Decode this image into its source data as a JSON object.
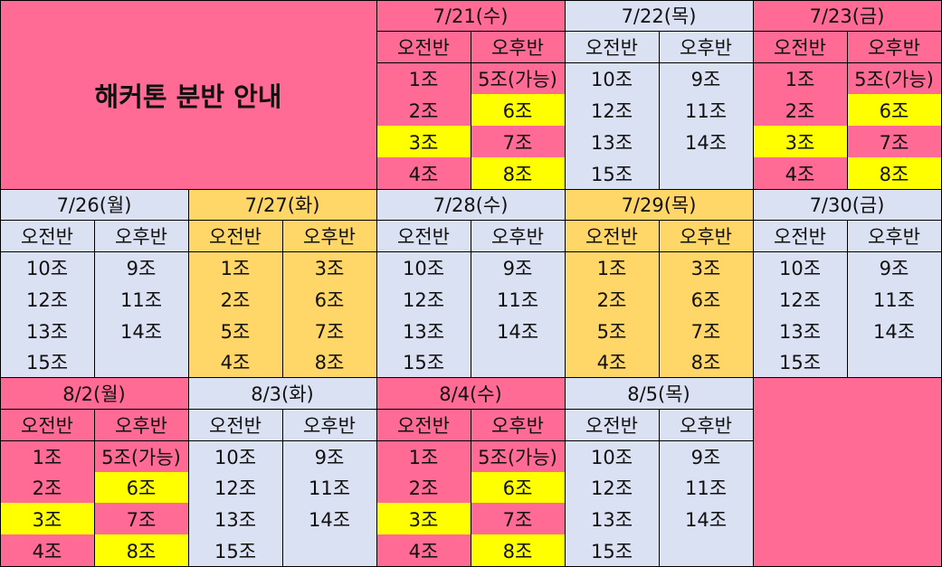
{
  "title": "해커톤 분반 안내",
  "labels": {
    "am": "오전반",
    "pm": "오후반"
  },
  "colors": {
    "pink": "#ff6b94",
    "blue": "#dae1f2",
    "orange": "#ffd667",
    "yellow": "#ffff00"
  },
  "days": [
    {
      "date": "7/21(수)",
      "theme": "pink",
      "am": [
        {
          "t": "1조",
          "c": "pink"
        },
        {
          "t": "2조",
          "c": "pink"
        },
        {
          "t": "3조",
          "c": "yellow"
        },
        {
          "t": "4조",
          "c": "pink"
        }
      ],
      "pm": [
        {
          "t": "5조(가능)",
          "c": "pink"
        },
        {
          "t": "6조",
          "c": "yellow"
        },
        {
          "t": "7조",
          "c": "pink"
        },
        {
          "t": "8조",
          "c": "yellow"
        }
      ]
    },
    {
      "date": "7/22(목)",
      "theme": "blue",
      "am": [
        {
          "t": "10조",
          "c": "blue"
        },
        {
          "t": "12조",
          "c": "blue"
        },
        {
          "t": "13조",
          "c": "blue"
        },
        {
          "t": "15조",
          "c": "blue"
        }
      ],
      "pm": [
        {
          "t": "9조",
          "c": "blue"
        },
        {
          "t": "11조",
          "c": "blue"
        },
        {
          "t": "14조",
          "c": "blue"
        },
        {
          "t": "",
          "c": "blue"
        }
      ]
    },
    {
      "date": "7/23(금)",
      "theme": "pink",
      "am": [
        {
          "t": "1조",
          "c": "pink"
        },
        {
          "t": "2조",
          "c": "pink"
        },
        {
          "t": "3조",
          "c": "yellow"
        },
        {
          "t": "4조",
          "c": "pink"
        }
      ],
      "pm": [
        {
          "t": "5조(가능)",
          "c": "pink"
        },
        {
          "t": "6조",
          "c": "yellow"
        },
        {
          "t": "7조",
          "c": "pink"
        },
        {
          "t": "8조",
          "c": "yellow"
        }
      ]
    },
    {
      "date": "7/26(월)",
      "theme": "blue",
      "am": [
        {
          "t": "10조",
          "c": "blue"
        },
        {
          "t": "12조",
          "c": "blue"
        },
        {
          "t": "13조",
          "c": "blue"
        },
        {
          "t": "15조",
          "c": "blue"
        }
      ],
      "pm": [
        {
          "t": "9조",
          "c": "blue"
        },
        {
          "t": "11조",
          "c": "blue"
        },
        {
          "t": "14조",
          "c": "blue"
        },
        {
          "t": "",
          "c": "blue"
        }
      ]
    },
    {
      "date": "7/27(화)",
      "theme": "orange",
      "am": [
        {
          "t": "1조",
          "c": "orange"
        },
        {
          "t": "2조",
          "c": "orange"
        },
        {
          "t": "5조",
          "c": "orange"
        },
        {
          "t": "4조",
          "c": "orange"
        }
      ],
      "pm": [
        {
          "t": "3조",
          "c": "orange"
        },
        {
          "t": "6조",
          "c": "orange"
        },
        {
          "t": "7조",
          "c": "orange"
        },
        {
          "t": "8조",
          "c": "orange"
        }
      ]
    },
    {
      "date": "7/28(수)",
      "theme": "blue",
      "am": [
        {
          "t": "10조",
          "c": "blue"
        },
        {
          "t": "12조",
          "c": "blue"
        },
        {
          "t": "13조",
          "c": "blue"
        },
        {
          "t": "15조",
          "c": "blue"
        }
      ],
      "pm": [
        {
          "t": "9조",
          "c": "blue"
        },
        {
          "t": "11조",
          "c": "blue"
        },
        {
          "t": "14조",
          "c": "blue"
        },
        {
          "t": "",
          "c": "blue"
        }
      ]
    },
    {
      "date": "7/29(목)",
      "theme": "orange",
      "am": [
        {
          "t": "1조",
          "c": "orange"
        },
        {
          "t": "2조",
          "c": "orange"
        },
        {
          "t": "5조",
          "c": "orange"
        },
        {
          "t": "4조",
          "c": "orange"
        }
      ],
      "pm": [
        {
          "t": "3조",
          "c": "orange"
        },
        {
          "t": "6조",
          "c": "orange"
        },
        {
          "t": "7조",
          "c": "orange"
        },
        {
          "t": "8조",
          "c": "orange"
        }
      ]
    },
    {
      "date": "7/30(금)",
      "theme": "blue",
      "am": [
        {
          "t": "10조",
          "c": "blue"
        },
        {
          "t": "12조",
          "c": "blue"
        },
        {
          "t": "13조",
          "c": "blue"
        },
        {
          "t": "15조",
          "c": "blue"
        }
      ],
      "pm": [
        {
          "t": "9조",
          "c": "blue"
        },
        {
          "t": "11조",
          "c": "blue"
        },
        {
          "t": "14조",
          "c": "blue"
        },
        {
          "t": "",
          "c": "blue"
        }
      ]
    },
    {
      "date": "8/2(월)",
      "theme": "pink",
      "am": [
        {
          "t": "1조",
          "c": "pink"
        },
        {
          "t": "2조",
          "c": "pink"
        },
        {
          "t": "3조",
          "c": "yellow"
        },
        {
          "t": "4조",
          "c": "pink"
        }
      ],
      "pm": [
        {
          "t": "5조(가능)",
          "c": "pink"
        },
        {
          "t": "6조",
          "c": "yellow"
        },
        {
          "t": "7조",
          "c": "pink"
        },
        {
          "t": "8조",
          "c": "yellow"
        }
      ]
    },
    {
      "date": "8/3(화)",
      "theme": "blue",
      "am": [
        {
          "t": "10조",
          "c": "blue"
        },
        {
          "t": "12조",
          "c": "blue"
        },
        {
          "t": "13조",
          "c": "blue"
        },
        {
          "t": "15조",
          "c": "blue"
        }
      ],
      "pm": [
        {
          "t": "9조",
          "c": "blue"
        },
        {
          "t": "11조",
          "c": "blue"
        },
        {
          "t": "14조",
          "c": "blue"
        },
        {
          "t": "",
          "c": "blue"
        }
      ]
    },
    {
      "date": "8/4(수)",
      "theme": "pink",
      "am": [
        {
          "t": "1조",
          "c": "pink"
        },
        {
          "t": "2조",
          "c": "pink"
        },
        {
          "t": "3조",
          "c": "yellow"
        },
        {
          "t": "4조",
          "c": "pink"
        }
      ],
      "pm": [
        {
          "t": "5조(가능)",
          "c": "pink"
        },
        {
          "t": "6조",
          "c": "yellow"
        },
        {
          "t": "7조",
          "c": "pink"
        },
        {
          "t": "8조",
          "c": "yellow"
        }
      ]
    },
    {
      "date": "8/5(목)",
      "theme": "blue",
      "am": [
        {
          "t": "10조",
          "c": "blue"
        },
        {
          "t": "12조",
          "c": "blue"
        },
        {
          "t": "13조",
          "c": "blue"
        },
        {
          "t": "15조",
          "c": "blue"
        }
      ],
      "pm": [
        {
          "t": "9조",
          "c": "blue"
        },
        {
          "t": "11조",
          "c": "blue"
        },
        {
          "t": "14조",
          "c": "blue"
        },
        {
          "t": "",
          "c": "blue"
        }
      ]
    }
  ]
}
